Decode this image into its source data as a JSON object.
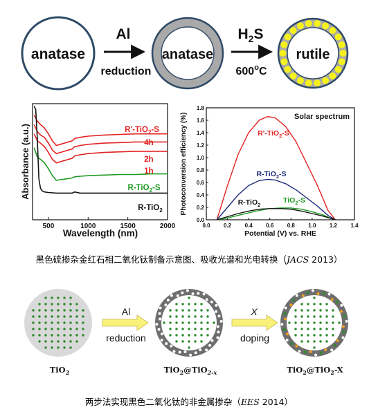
{
  "scheme1": {
    "stage1_label": "anatase",
    "arrow1_top": "Al",
    "arrow1_bottom": "reduction",
    "stage2_label": "anatase",
    "arrow2_top_main": "H",
    "arrow2_top_sub": "2",
    "arrow2_top_tail": "S",
    "arrow2_bottom_main": "600",
    "arrow2_bottom_sup": "o",
    "arrow2_bottom_tail": "C",
    "stage3_label": "rutile",
    "colors": {
      "gray_shell": "#a9a9a9",
      "yellow_dots": "#f4f11c",
      "outline": "#2e4a66"
    }
  },
  "absorbance_chart": {
    "ylabel": "Absorbance (a.u.)",
    "xlabel": "Wavelength (nm)",
    "labels": {
      "r_prime": {
        "main": "R'-TiO",
        "sub": "2",
        "tail": "-S"
      },
      "h4": "4h",
      "h2": "2h",
      "h1": "1h",
      "r_tio2_s": {
        "main": "R-TiO",
        "sub": "2",
        "tail": "-S"
      },
      "r_tio2": {
        "main": "R-TiO",
        "sub": "2",
        "tail": ""
      }
    }
  },
  "pce_chart": {
    "ylabel": "Photoconversion efficiency (%)",
    "xlabel": "Potential (V) vs. RHE",
    "legend_title": "Solar spectrum",
    "labels": {
      "r_prime": {
        "main": "R'-TiO",
        "sub": "2",
        "tail": "-S"
      },
      "r_tio2_s": {
        "main": "R-TiO",
        "sub": "2",
        "tail": "-S"
      },
      "r_tio2": {
        "main": "R-TiO",
        "sub": "2",
        "tail": ""
      },
      "tio2_s": {
        "main": "TiO",
        "sub": "2",
        "tail": "-S"
      }
    }
  },
  "chart_data": [
    {
      "type": "line",
      "xlabel": "Wavelength (nm)",
      "ylabel": "Absorbance (a.u.)",
      "xlim": [
        300,
        2000
      ],
      "x_ticks": [
        500,
        1000,
        1500,
        2000
      ],
      "y_ticks_shown": false,
      "series": [
        {
          "name": "R'-TiO2-S 4h",
          "color": "#e32222",
          "x": [
            320,
            360,
            400,
            450,
            500,
            550,
            600,
            650,
            700,
            800,
            830,
            900,
            1000,
            1200,
            1400,
            1600,
            1800,
            2000
          ],
          "y": [
            0.9,
            0.85,
            0.82,
            0.79,
            0.74,
            0.68,
            0.64,
            0.65,
            0.66,
            0.68,
            0.7,
            0.71,
            0.72,
            0.73,
            0.735,
            0.74,
            0.74,
            0.74
          ]
        },
        {
          "name": "R'-TiO2-S 2h",
          "color": "#e32222",
          "x": [
            320,
            360,
            400,
            450,
            500,
            550,
            600,
            650,
            700,
            800,
            830,
            900,
            1000,
            1200,
            1400,
            1600,
            1800,
            2000
          ],
          "y": [
            0.82,
            0.76,
            0.73,
            0.71,
            0.66,
            0.6,
            0.57,
            0.58,
            0.59,
            0.61,
            0.63,
            0.64,
            0.65,
            0.66,
            0.665,
            0.67,
            0.67,
            0.67
          ]
        },
        {
          "name": "R'-TiO2-S 1h",
          "color": "#e32222",
          "x": [
            320,
            360,
            400,
            450,
            500,
            550,
            600,
            650,
            700,
            800,
            830,
            900,
            1000,
            1200,
            1400,
            1600,
            1800,
            2000
          ],
          "y": [
            0.74,
            0.68,
            0.66,
            0.63,
            0.58,
            0.52,
            0.49,
            0.5,
            0.51,
            0.53,
            0.55,
            0.56,
            0.57,
            0.58,
            0.585,
            0.59,
            0.59,
            0.59
          ]
        },
        {
          "name": "R-TiO2-S",
          "color": "#1f9a22",
          "x": [
            320,
            360,
            400,
            450,
            500,
            550,
            600,
            650,
            700,
            800,
            830,
            900,
            1000,
            1200,
            1400,
            1600,
            1800,
            2000
          ],
          "y": [
            0.62,
            0.54,
            0.52,
            0.49,
            0.44,
            0.38,
            0.34,
            0.345,
            0.35,
            0.36,
            0.37,
            0.375,
            0.38,
            0.385,
            0.39,
            0.39,
            0.395,
            0.395
          ]
        },
        {
          "name": "R-TiO2",
          "color": "#111111",
          "x": [
            320,
            340,
            360,
            380,
            400,
            420,
            450,
            500,
            600,
            700,
            800,
            830,
            900,
            1000,
            1200,
            1400,
            1600,
            1800,
            2000
          ],
          "y": [
            0.98,
            0.95,
            0.7,
            0.35,
            0.27,
            0.25,
            0.24,
            0.235,
            0.23,
            0.23,
            0.23,
            0.24,
            0.23,
            0.23,
            0.23,
            0.23,
            0.23,
            0.23,
            0.23
          ]
        }
      ]
    },
    {
      "type": "line",
      "xlabel": "Potential (V) vs. RHE",
      "ylabel": "Photoconversion efficiency (%)",
      "xlim": [
        0.0,
        1.4
      ],
      "ylim": [
        0.0,
        1.8
      ],
      "x_ticks": [
        0.0,
        0.2,
        0.4,
        0.6,
        0.8,
        1.0,
        1.2,
        1.4
      ],
      "y_ticks": [
        0.0,
        0.2,
        0.4,
        0.6,
        0.8,
        1.0,
        1.2,
        1.4,
        1.6,
        1.8
      ],
      "legend": "Solar spectrum (top-right)",
      "series": [
        {
          "name": "R'-TiO2-S",
          "color": "#e32222",
          "x": [
            0.1,
            0.2,
            0.3,
            0.4,
            0.5,
            0.58,
            0.65,
            0.75,
            0.85,
            0.95,
            1.05,
            1.15,
            1.22
          ],
          "y": [
            0.0,
            0.55,
            1.05,
            1.4,
            1.6,
            1.66,
            1.64,
            1.5,
            1.25,
            0.9,
            0.55,
            0.15,
            0.0
          ]
        },
        {
          "name": "R-TiO2-S",
          "color": "#1c2b7a",
          "x": [
            0.1,
            0.2,
            0.3,
            0.4,
            0.5,
            0.58,
            0.65,
            0.75,
            0.85,
            0.95,
            1.05,
            1.15,
            1.22
          ],
          "y": [
            0.0,
            0.2,
            0.4,
            0.55,
            0.63,
            0.65,
            0.64,
            0.58,
            0.48,
            0.35,
            0.22,
            0.07,
            0.0
          ]
        },
        {
          "name": "TiO2-S",
          "color": "#1f9a22",
          "x": [
            0.1,
            0.2,
            0.3,
            0.4,
            0.5,
            0.6,
            0.7,
            0.8,
            0.9,
            1.0,
            1.1,
            1.18,
            1.22
          ],
          "y": [
            0.0,
            0.03,
            0.07,
            0.11,
            0.15,
            0.18,
            0.19,
            0.19,
            0.17,
            0.13,
            0.08,
            0.02,
            0.0
          ]
        },
        {
          "name": "R-TiO2",
          "color": "#111111",
          "x": [
            0.1,
            0.2,
            0.3,
            0.4,
            0.5,
            0.6,
            0.7,
            0.8,
            0.9,
            1.0,
            1.1,
            1.18,
            1.22
          ],
          "y": [
            0.0,
            0.05,
            0.1,
            0.14,
            0.17,
            0.18,
            0.18,
            0.17,
            0.14,
            0.1,
            0.06,
            0.02,
            0.0
          ]
        }
      ]
    }
  ],
  "caption1": {
    "text": "黑色硫掺杂金红石相二氧化钛制备示意图、吸收光谱和光电转换（",
    "journal": "JACS",
    "year_close": " 2013）"
  },
  "scheme2": {
    "arrow1_top": "Al",
    "arrow1_bottom": "reduction",
    "arrow2_top": "X",
    "arrow2_bottom": "doping",
    "label1": {
      "main": "TiO",
      "sub": "2"
    },
    "label2": {
      "a": "TiO",
      "a_sub": "2",
      "mid": "@TiO",
      "b_sub": "2-x"
    },
    "label3": {
      "a": "TiO",
      "a_sub": "2",
      "mid": "@TiO",
      "b_sub": "2",
      "tail": "-X"
    },
    "colors": {
      "core": "#d9d9d9",
      "shell": "#6e6e6e",
      "green_dots": "#2e8a2e",
      "white_dots": "#ffffff",
      "orange_dots": "#f0a020",
      "arrow": "#f9f27a"
    }
  },
  "caption2": {
    "text": "两步法实现黑色二氧化钛的非金属掺杂（",
    "journal": "EES",
    "year_close": " 2014）"
  }
}
